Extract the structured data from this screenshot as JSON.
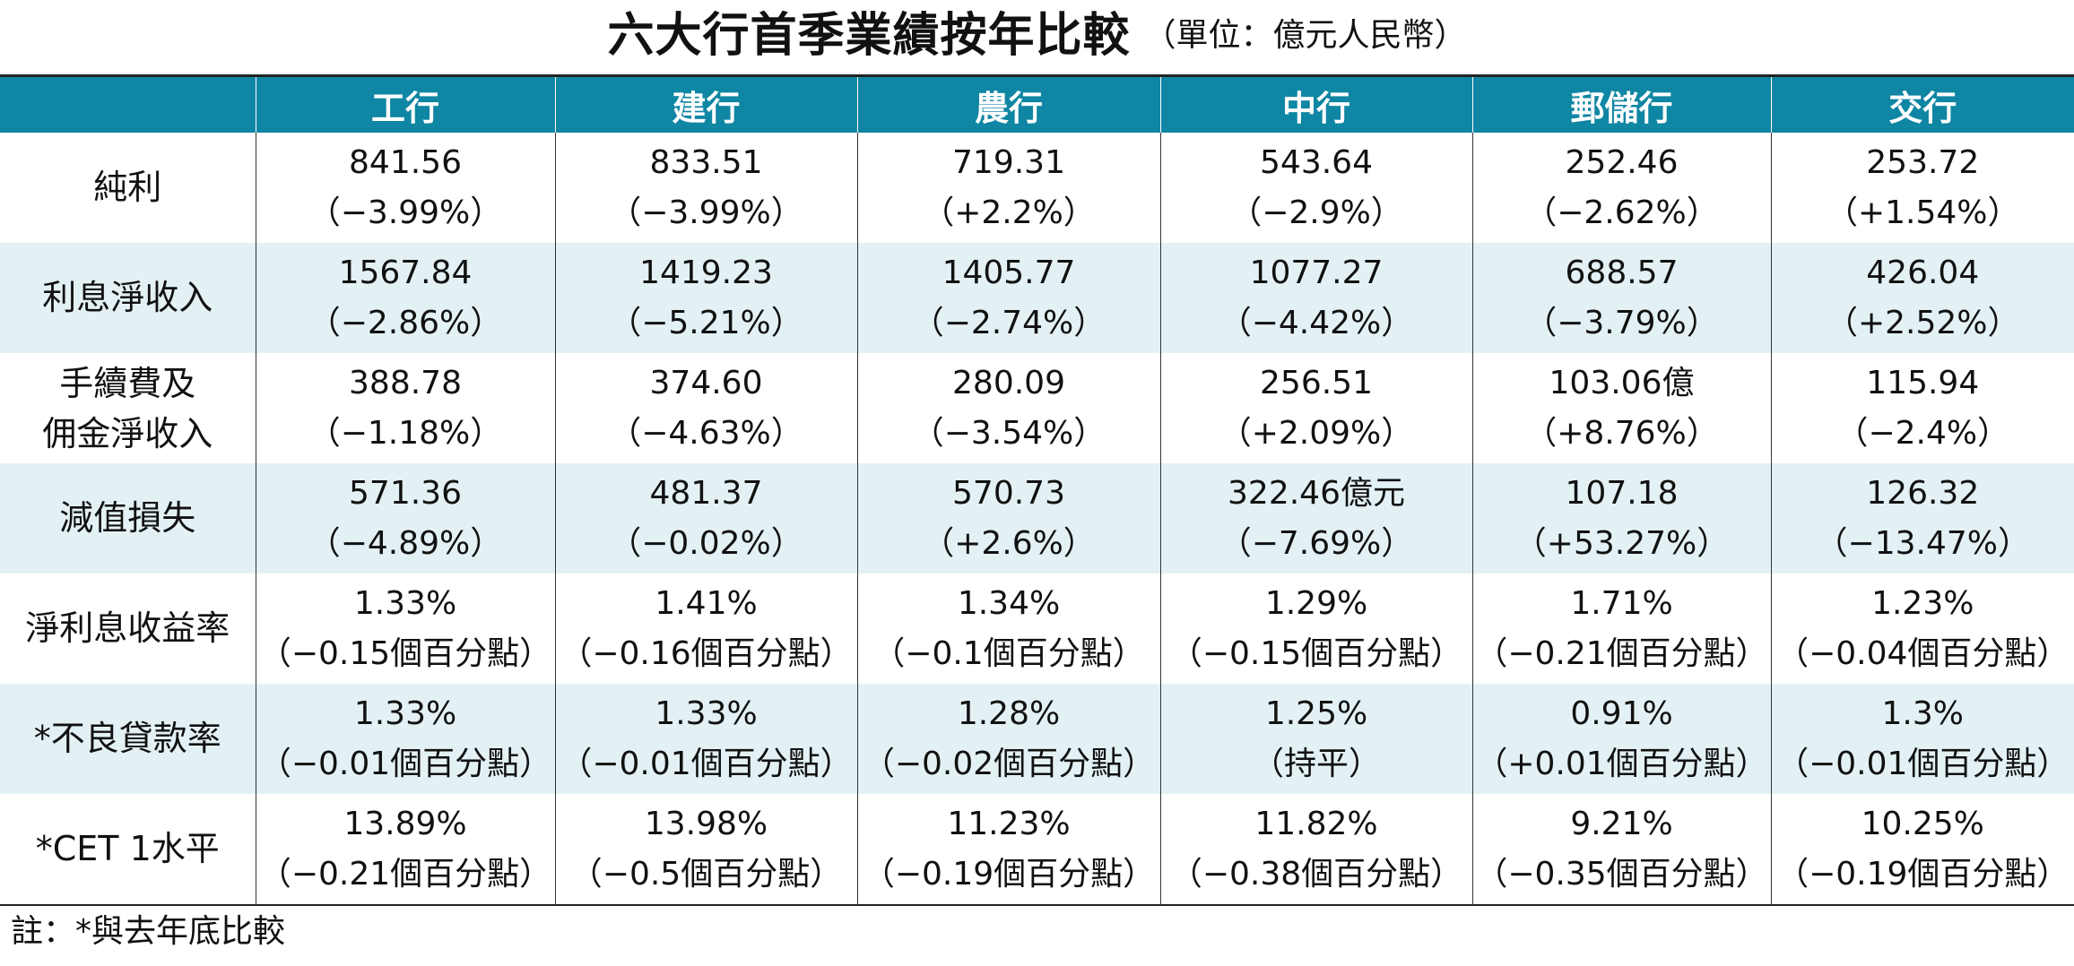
{
  "title": "六大行首季業績按年比較",
  "unit": "（單位：億元人民幣）",
  "columns": [
    "",
    "工行",
    "建行",
    "農行",
    "中行",
    "郵儲行",
    "交行"
  ],
  "rows": [
    {
      "label": "純利",
      "cells": [
        {
          "value": "841.56",
          "change": "（−3.99%）"
        },
        {
          "value": "833.51",
          "change": "（−3.99%）"
        },
        {
          "value": "719.31",
          "change": "（+2.2%）"
        },
        {
          "value": "543.64",
          "change": "（−2.9%）"
        },
        {
          "value": "252.46",
          "change": "（−2.62%）"
        },
        {
          "value": "253.72",
          "change": "（+1.54%）"
        }
      ]
    },
    {
      "label": "利息淨收入",
      "cells": [
        {
          "value": "1567.84",
          "change": "（−2.86%）"
        },
        {
          "value": "1419.23",
          "change": "（−5.21%）"
        },
        {
          "value": "1405.77",
          "change": "（−2.74%）"
        },
        {
          "value": "1077.27",
          "change": "（−4.42%）"
        },
        {
          "value": "688.57",
          "change": "（−3.79%）"
        },
        {
          "value": "426.04",
          "change": "（+2.52%）"
        }
      ]
    },
    {
      "label_lines": [
        "手續費及",
        "佣金淨收入"
      ],
      "cells": [
        {
          "value": "388.78",
          "change": "（−1.18%）"
        },
        {
          "value": "374.60",
          "change": "（−4.63%）"
        },
        {
          "value": "280.09",
          "change": "（−3.54%）"
        },
        {
          "value": "256.51",
          "change": "（+2.09%）"
        },
        {
          "value": "103.06億",
          "change": "（+8.76%）"
        },
        {
          "value": "115.94",
          "change": "（−2.4%）"
        }
      ]
    },
    {
      "label": "減值損失",
      "cells": [
        {
          "value": "571.36",
          "change": "（−4.89%）"
        },
        {
          "value": "481.37",
          "change": "（−0.02%）"
        },
        {
          "value": "570.73",
          "change": "（+2.6%）"
        },
        {
          "value": "322.46億元",
          "change": "（−7.69%）"
        },
        {
          "value": "107.18",
          "change": "（+53.27%）"
        },
        {
          "value": "126.32",
          "change": "（−13.47%）"
        }
      ]
    },
    {
      "label": "淨利息收益率",
      "cells": [
        {
          "value": "1.33%",
          "change": "（−0.15個百分點）"
        },
        {
          "value": "1.41%",
          "change": "（−0.16個百分點）"
        },
        {
          "value": "1.34%",
          "change": "（−0.1個百分點）"
        },
        {
          "value": "1.29%",
          "change": "（−0.15個百分點）"
        },
        {
          "value": "1.71%",
          "change": "（−0.21個百分點）"
        },
        {
          "value": "1.23%",
          "change": "（−0.04個百分點）"
        }
      ]
    },
    {
      "label": "*不良貸款率",
      "cells": [
        {
          "value": "1.33%",
          "change": "（−0.01個百分點）"
        },
        {
          "value": "1.33%",
          "change": "（−0.01個百分點）"
        },
        {
          "value": "1.28%",
          "change": "（−0.02個百分點）"
        },
        {
          "value": "1.25%",
          "change": "（持平）"
        },
        {
          "value": "0.91%",
          "change": "（+0.01個百分點）"
        },
        {
          "value": "1.3%",
          "change": "（−0.01個百分點）"
        }
      ]
    },
    {
      "label": "*CET 1水平",
      "cells": [
        {
          "value": "13.89%",
          "change": "（−0.21個百分點）"
        },
        {
          "value": "13.98%",
          "change": "（−0.5個百分點）"
        },
        {
          "value": "11.23%",
          "change": "（−0.19個百分點）"
        },
        {
          "value": "11.82%",
          "change": "（−0.38個百分點）"
        },
        {
          "value": "9.21%",
          "change": "（−0.35個百分點）"
        },
        {
          "value": "10.25%",
          "change": "（−0.19個百分點）"
        }
      ]
    }
  ],
  "note": "註：*與去年底比較",
  "colors": {
    "header_bg": "#0f86a3",
    "header_text": "#ffffff",
    "shade_row": "#e3f1f5",
    "plain_row": "#ffffff"
  }
}
